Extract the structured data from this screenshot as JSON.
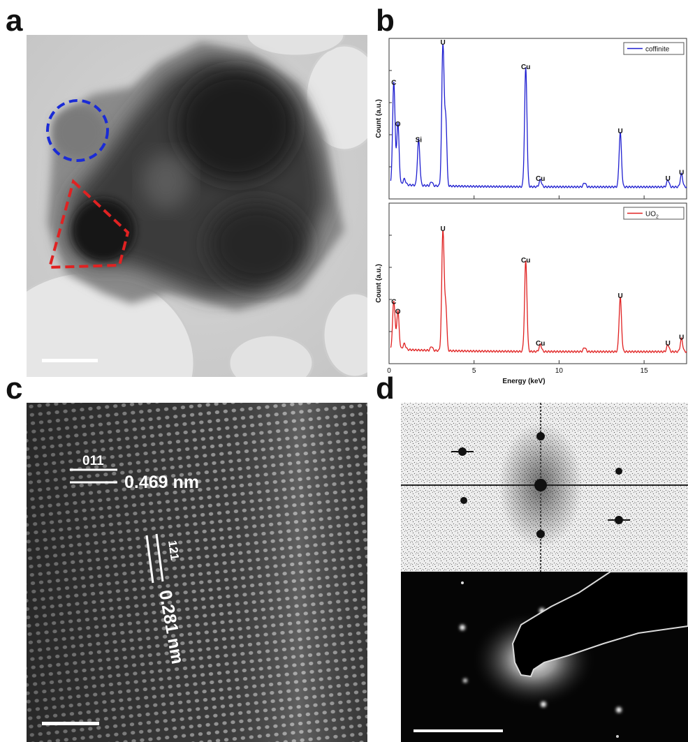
{
  "figure": {
    "panel_labels": {
      "a": "a",
      "b": "b",
      "c": "c",
      "d": "d"
    },
    "panel_c": {
      "plane_1": "011",
      "spacing_1": "0.469 nm",
      "plane_2": "121",
      "spacing_2": "0.281 nm"
    }
  },
  "chart_data": [
    {
      "type": "line",
      "ylabel": "Count (a.u.)",
      "xlim": [
        0,
        17.5
      ],
      "x_ticks": [
        "0",
        "5",
        "10",
        "15"
      ],
      "grid": false,
      "legend_position": "top-right",
      "series": [
        {
          "name": "coffinite",
          "color": "#1f1fd0"
        }
      ],
      "peaks": [
        {
          "label": "C",
          "x": 0.28,
          "y": 0.72
        },
        {
          "label": "O",
          "x": 0.52,
          "y": 0.43
        },
        {
          "label": "Si",
          "x": 1.74,
          "y": 0.32
        },
        {
          "label": "U",
          "x": 3.17,
          "y": 1.0
        },
        {
          "label": "Cu",
          "x": 8.04,
          "y": 0.83
        },
        {
          "label": "Cu",
          "x": 8.9,
          "y": 0.05
        },
        {
          "label": "U",
          "x": 13.6,
          "y": 0.38
        },
        {
          "label": "U",
          "x": 16.4,
          "y": 0.05
        },
        {
          "label": "U",
          "x": 17.2,
          "y": 0.09
        }
      ]
    },
    {
      "type": "line",
      "xlabel": "Energy (keV)",
      "ylabel": "Count (a.u.)",
      "xlim": [
        0,
        17.5
      ],
      "x_ticks": [
        "0",
        "5",
        "10",
        "15"
      ],
      "grid": false,
      "legend_position": "top-right",
      "series": [
        {
          "name": "UO",
          "name_subscript": "2",
          "color": "#e02020"
        }
      ],
      "peaks": [
        {
          "label": "C",
          "x": 0.28,
          "y": 0.34
        },
        {
          "label": "O",
          "x": 0.52,
          "y": 0.27
        },
        {
          "label": "U",
          "x": 3.17,
          "y": 0.85
        },
        {
          "label": "Cu",
          "x": 8.04,
          "y": 0.63
        },
        {
          "label": "Cu",
          "x": 8.9,
          "y": 0.05
        },
        {
          "label": "U",
          "x": 13.6,
          "y": 0.38
        },
        {
          "label": "U",
          "x": 16.4,
          "y": 0.05
        },
        {
          "label": "U",
          "x": 17.2,
          "y": 0.09
        }
      ]
    }
  ]
}
